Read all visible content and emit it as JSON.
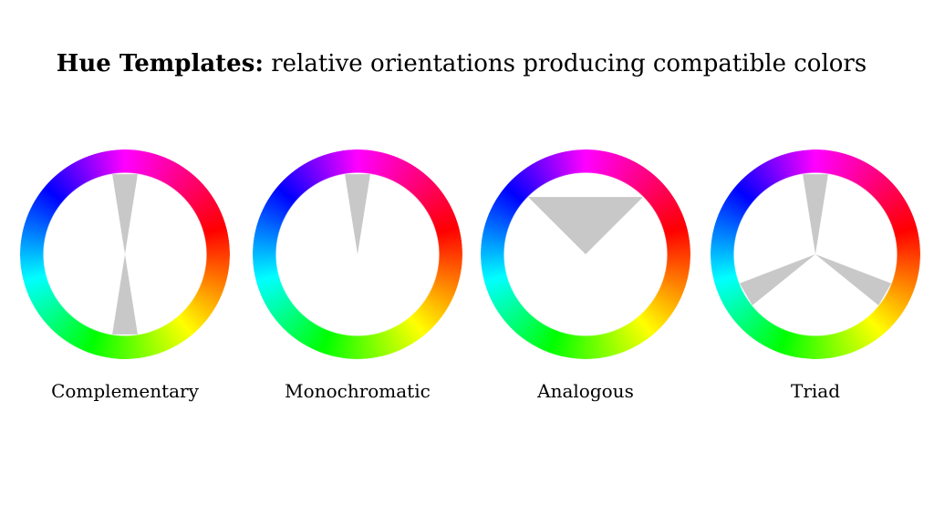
{
  "title": {
    "bold": "Hue Templates:",
    "rest": " relative orientations producing compatible colors"
  },
  "templates": [
    {
      "label": "Complementary",
      "sectors": [
        {
          "center_deg": 0,
          "width_deg": 18
        },
        {
          "center_deg": 180,
          "width_deg": 18
        }
      ]
    },
    {
      "label": "Monochromatic",
      "sectors": [
        {
          "center_deg": 0,
          "width_deg": 18
        }
      ]
    },
    {
      "label": "Analogous",
      "sectors": [
        {
          "center_deg": 0,
          "width_deg": 90
        }
      ]
    },
    {
      "label": "Triad",
      "sectors": [
        {
          "center_deg": 0,
          "width_deg": 18
        },
        {
          "center_deg": 120,
          "width_deg": 18
        },
        {
          "center_deg": 240,
          "width_deg": 18
        }
      ]
    }
  ],
  "colors": {
    "sector_fill": "#c8c8c8",
    "background": "#ffffff"
  }
}
